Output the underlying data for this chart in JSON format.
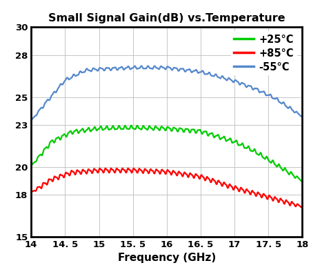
{
  "title": "Small Signal Gain(dB) vs.Temperature",
  "xlabel": "Frequency (GHz)",
  "xlim": [
    14,
    18
  ],
  "ylim": [
    15,
    30
  ],
  "xticks": [
    14,
    14.5,
    15,
    15.5,
    16,
    16.5,
    17,
    17.5,
    18
  ],
  "yticks": [
    15,
    18,
    20,
    23,
    25,
    28,
    30
  ],
  "xtick_labels": [
    "14",
    "14. 5",
    "15",
    "15. 5",
    "16",
    "16. 5",
    "17",
    "17. 5",
    "18"
  ],
  "ytick_labels": [
    "15",
    "18",
    "20",
    "23",
    "25",
    "28",
    "30"
  ],
  "legend": [
    "+25°C",
    "+85°C",
    "-55°C"
  ],
  "colors": [
    "#00cc00",
    "#ff0000",
    "#5588cc"
  ],
  "background": "#ffffff",
  "grid_color": "#bbbbbb",
  "knots_25": [
    14,
    14.3,
    14.6,
    15.0,
    15.5,
    16.0,
    16.5,
    17.0,
    17.3,
    17.6,
    18.0
  ],
  "vals_25": [
    20.05,
    21.8,
    22.5,
    22.75,
    22.8,
    22.75,
    22.55,
    21.8,
    21.1,
    20.2,
    19.0
  ],
  "knots_85": [
    14,
    14.3,
    14.6,
    15.0,
    15.5,
    16.0,
    16.5,
    17.0,
    17.3,
    17.6,
    18.0
  ],
  "vals_85": [
    18.15,
    19.1,
    19.6,
    19.75,
    19.75,
    19.65,
    19.3,
    18.5,
    18.1,
    17.7,
    17.15
  ],
  "knots_55": [
    14,
    14.2,
    14.5,
    14.8,
    15.0,
    15.5,
    16.0,
    16.5,
    17.0,
    17.3,
    17.6,
    18.0
  ],
  "vals_55": [
    23.3,
    24.5,
    26.2,
    26.9,
    27.0,
    27.1,
    27.1,
    26.8,
    26.15,
    25.6,
    24.9,
    23.6
  ]
}
